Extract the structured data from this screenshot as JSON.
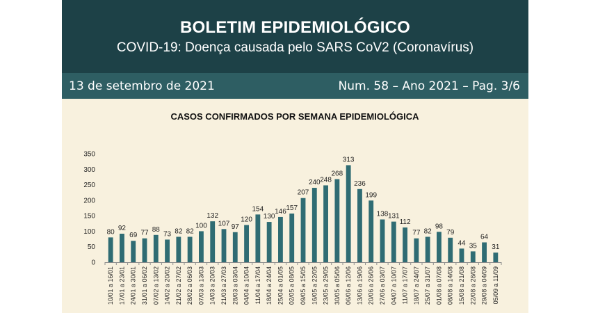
{
  "header": {
    "title": "BOLETIM EPIDEMIOLÓGICO",
    "subtitle": "COVID-19: Doença  causada pelo SARS CoV2 (Coronavírus)",
    "date": "13 de setembro de 2021",
    "issue": "Num. 58 – Ano 2021 – Pag. 3/6",
    "colors": {
      "banner": "#1d4147",
      "infobar": "#2e5e63",
      "background": "#f6efdb"
    }
  },
  "chart_data": {
    "type": "bar",
    "title": "CASOS CONFIRMADOS POR SEMANA EPIDEMIOLÓGICA",
    "xlabel": "",
    "ylabel": "",
    "ylim": [
      0,
      350
    ],
    "yticks": [
      0,
      50,
      100,
      150,
      200,
      250,
      300,
      350
    ],
    "grid": false,
    "bar_color": "#2f6c73",
    "categories": [
      "10/01 a 16/01",
      "17/01 a 23/01",
      "24/01 a 30/01",
      "31/01 a 06/02",
      "07/02 a 13/02",
      "14/02 a 20/02",
      "21/02 a 27/02",
      "28/02 a 06/03",
      "07/03 a 13/03",
      "14/03 a 20/03",
      "21/03 a 27/03",
      "28/03 a 03/04",
      "04/04 a 10/04",
      "11/04 a 17/04",
      "18/04 a 24/04",
      "25/04 a 01/05",
      "02/05 a 08/05",
      "09/05 a 15/05",
      "16/05 a 22/05",
      "23/05 a 29/05",
      "30/05 a 05/06",
      "06/06 a 12/06",
      "13/06 a 19/06",
      "20/06 a 26/06",
      "27/06 a 03/07",
      "04/07 a 10/07",
      "11/07 a 17/07",
      "18/07 a 24/07",
      "25/07 a 31/07",
      "01/08 a 07/08",
      "08/08 a 14/08",
      "15/08 a 21/08",
      "22/08 a 28/08",
      "29/08 a 04/09",
      "05/09 a 11/09"
    ],
    "values": [
      80,
      92,
      69,
      77,
      88,
      73,
      82,
      82,
      100,
      132,
      107,
      97,
      120,
      154,
      130,
      146,
      157,
      207,
      240,
      248,
      268,
      313,
      236,
      199,
      138,
      131,
      112,
      77,
      82,
      98,
      79,
      44,
      35,
      64,
      31
    ]
  }
}
